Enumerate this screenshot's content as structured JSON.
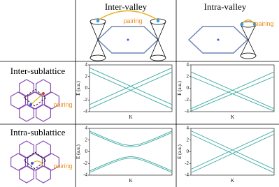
{
  "columns": [
    "Inter-valley",
    "Intra-valley"
  ],
  "rows": [
    "Inter-sublattice",
    "Intra-sublattice"
  ],
  "pairing_labels": [
    "pairing",
    "pairing",
    "pairing",
    "pairing"
  ],
  "chart_data": [
    {
      "type": "line",
      "ylabel": "E (a.u.)",
      "xlabel": "K",
      "ylim": [
        -4,
        4
      ],
      "yticks": [
        -4,
        -2,
        0,
        2,
        4
      ],
      "x": [
        0,
        1
      ],
      "series": [
        {
          "color": "#3aa9a0",
          "values": [
            3.5,
            -2.8
          ]
        },
        {
          "color": "#3aa9a0",
          "values": [
            2.8,
            -3.5
          ]
        },
        {
          "color": "#3aa9a0",
          "values": [
            -2.8,
            3.5
          ]
        },
        {
          "color": "#3aa9a0",
          "values": [
            -3.5,
            2.8
          ]
        }
      ]
    },
    {
      "type": "line",
      "ylabel": "E (a.u.)",
      "xlabel": "K",
      "ylim": [
        -4,
        4
      ],
      "yticks": [
        -4,
        -2,
        0,
        2,
        4
      ],
      "x": [
        0,
        1
      ],
      "series": [
        {
          "color": "#3aa9a0",
          "values": [
            2.8,
            -3.5
          ]
        },
        {
          "color": "#3aa9a0",
          "values": [
            2.0,
            -3.9
          ]
        },
        {
          "color": "#3aa9a0",
          "values": [
            -3.5,
            2.8
          ]
        },
        {
          "color": "#3aa9a0",
          "values": [
            -3.9,
            2.0
          ]
        }
      ]
    },
    {
      "type": "line",
      "ylabel": "E (a.u.)",
      "xlabel": "K",
      "ylim": [
        -4,
        4
      ],
      "yticks": [
        -4,
        -2,
        0,
        2,
        4
      ],
      "x": [
        0,
        0.1,
        0.2,
        0.3,
        0.4,
        0.5,
        0.6,
        0.7,
        0.8,
        0.9,
        1
      ],
      "series": [
        {
          "color": "#3aa9a0",
          "values": [
            3.3,
            2.68,
            2.08,
            1.51,
            1.02,
            0.8,
            1.02,
            1.51,
            2.08,
            2.68,
            3.3
          ]
        },
        {
          "color": "#3aa9a0",
          "values": [
            3.55,
            2.93,
            2.33,
            1.76,
            1.27,
            1.05,
            1.27,
            1.76,
            2.33,
            2.93,
            3.55
          ]
        },
        {
          "color": "#3aa9a0",
          "values": [
            -3.3,
            -2.68,
            -2.08,
            -1.51,
            -1.02,
            -0.8,
            -1.02,
            -1.51,
            -2.08,
            -2.68,
            -3.3
          ]
        },
        {
          "color": "#3aa9a0",
          "values": [
            -3.55,
            -2.93,
            -2.33,
            -1.76,
            -1.27,
            -1.05,
            -1.27,
            -1.76,
            -2.33,
            -2.93,
            -3.55
          ]
        }
      ]
    },
    {
      "type": "line",
      "ylabel": "E (a.u.)",
      "xlabel": "K",
      "ylim": [
        -4,
        4
      ],
      "yticks": [
        -4,
        -2,
        0,
        2,
        4
      ],
      "x": [
        0,
        1
      ],
      "series": [
        {
          "color": "#3aa9a0",
          "values": [
            3.6,
            -3.0
          ]
        },
        {
          "color": "#3aa9a0",
          "values": [
            3.0,
            -3.6
          ]
        },
        {
          "color": "#3aa9a0",
          "values": [
            -3.0,
            3.6
          ]
        },
        {
          "color": "#3aa9a0",
          "values": [
            -3.6,
            3.0
          ]
        }
      ]
    }
  ]
}
